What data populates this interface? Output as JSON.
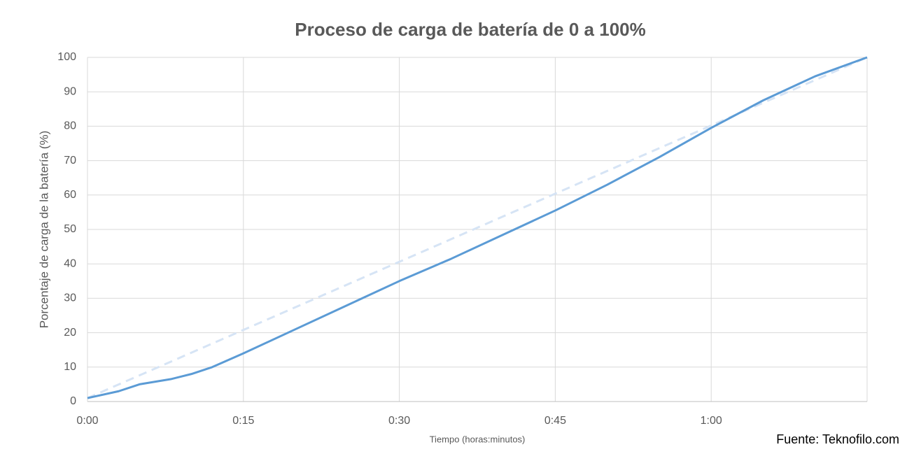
{
  "chart_data": {
    "type": "line",
    "title": "Proceso de carga de batería de 0 a 100%",
    "x_label": "Tiempo (horas:minutos)",
    "y_label": "Porcentaje de carga de la batería (%)",
    "source": "Fuente: Teknofilo.com",
    "series": [
      {
        "color": "#5b9bd5",
        "dash": false,
        "x": [
          0,
          3,
          5,
          8,
          10,
          12,
          15,
          20,
          25,
          30,
          35,
          40,
          45,
          50,
          55,
          60,
          65,
          70,
          75
        ],
        "values": [
          1,
          3,
          5,
          6.5,
          8,
          10,
          14,
          21,
          28,
          35,
          41.5,
          48.5,
          55.5,
          63,
          71,
          79.5,
          87.5,
          94.5,
          100
        ]
      },
      {
        "color": "#d6e4f5",
        "dash": true,
        "x": [
          0,
          75
        ],
        "values": [
          1,
          100
        ]
      }
    ],
    "xlim": [
      0,
      75
    ],
    "xticks": [
      {
        "value": 0,
        "label": "0:00"
      },
      {
        "value": 15,
        "label": "0:15"
      },
      {
        "value": 30,
        "label": "0:30"
      },
      {
        "value": 45,
        "label": "0:45"
      },
      {
        "value": 60,
        "label": "1:00"
      }
    ],
    "ylim": [
      0,
      100
    ],
    "yticks": [
      0,
      10,
      20,
      30,
      40,
      50,
      60,
      70,
      80,
      90,
      100
    ],
    "grid": true
  }
}
